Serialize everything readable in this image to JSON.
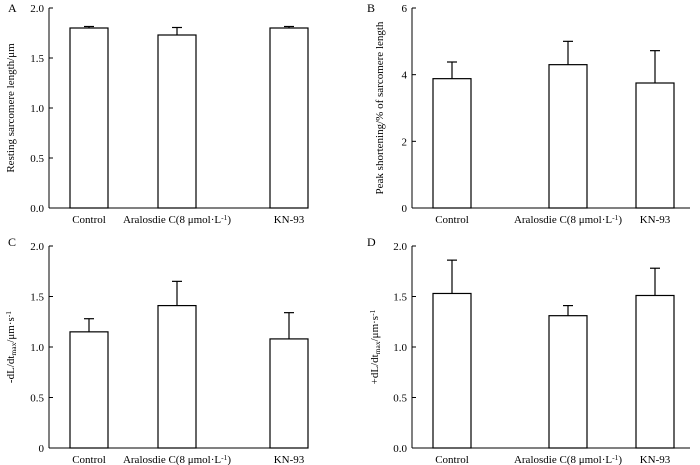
{
  "chart_data": [
    {
      "panel": "A",
      "type": "bar",
      "categories": [
        "Control",
        "Aralosdie C(8 μmol·L",
        "KN-93"
      ],
      "category_superscripts": [
        "",
        "-1",
        ""
      ],
      "category_suffix": [
        "",
        ")",
        ""
      ],
      "values": [
        1.8,
        1.73,
        1.8
      ],
      "errors": [
        0.015,
        0.075,
        0.015
      ],
      "ylim": [
        0,
        2.0
      ],
      "yticks": [
        0,
        0.5,
        1.0,
        1.5,
        2.0
      ],
      "ytick_labels": [
        "0.0",
        "0.5",
        "1.0",
        "1.5",
        "2.0"
      ],
      "ylabel": "Resting sarcomere length/μm",
      "ylabel_parts": [
        {
          "text": "Resting sarcomere length/μm",
          "style": "normal"
        }
      ],
      "xlabel": ""
    },
    {
      "panel": "B",
      "type": "bar",
      "categories": [
        "Control",
        "Aralosdie C(8 μmol·L",
        "KN-93"
      ],
      "category_superscripts": [
        "",
        "-1",
        ""
      ],
      "category_suffix": [
        "",
        ")",
        ""
      ],
      "values": [
        3.88,
        4.3,
        3.75
      ],
      "errors": [
        0.5,
        0.7,
        0.97
      ],
      "ylim": [
        0,
        6
      ],
      "yticks": [
        0,
        2,
        4,
        6
      ],
      "ytick_labels": [
        "0",
        "2",
        "4",
        "6"
      ],
      "ylabel": "Peak shortening/% of sarcomere length",
      "ylabel_parts": [
        {
          "text": "Peak shortening/% of sarcomere length",
          "style": "normal"
        }
      ],
      "xlabel": ""
    },
    {
      "panel": "C",
      "type": "bar",
      "categories": [
        "Control",
        "Aralosdie C(8 μmol·L",
        "KN-93"
      ],
      "category_superscripts": [
        "",
        "-1",
        ""
      ],
      "category_suffix": [
        "",
        ")",
        ""
      ],
      "values": [
        1.15,
        1.41,
        1.08
      ],
      "errors": [
        0.13,
        0.24,
        0.26
      ],
      "ylim": [
        0,
        2.0
      ],
      "yticks": [
        0,
        0.5,
        1.0,
        1.5,
        2.0
      ],
      "ytick_labels": [
        "0",
        "0.5",
        "1.0",
        "1.5",
        "2.0"
      ],
      "ylabel": "-dL/dtmax/μm·s-1",
      "ylabel_parts": [
        {
          "text": "-dL/dt",
          "style": "normal"
        },
        {
          "text": "max",
          "style": "sub"
        },
        {
          "text": "/μm·s",
          "style": "normal"
        },
        {
          "text": "-1",
          "style": "sup"
        }
      ],
      "xlabel": ""
    },
    {
      "panel": "D",
      "type": "bar",
      "categories": [
        "Control",
        "Aralosdie C(8 μmol·L",
        "KN-93"
      ],
      "category_superscripts": [
        "",
        "-1",
        ""
      ],
      "category_suffix": [
        "",
        ")",
        ""
      ],
      "values": [
        1.53,
        1.31,
        1.51
      ],
      "errors": [
        0.33,
        0.1,
        0.27
      ],
      "ylim": [
        0,
        2.0
      ],
      "yticks": [
        0,
        0.5,
        1.0,
        1.5,
        2.0
      ],
      "ytick_labels": [
        "0.0",
        "0.5",
        "1.0",
        "1.5",
        "2.0"
      ],
      "ylabel": "+dL/dtmax/μm·s-1",
      "ylabel_parts": [
        {
          "text": "+dL/dt",
          "style": "normal"
        },
        {
          "text": "max",
          "style": "sub"
        },
        {
          "text": "/μm·s",
          "style": "normal"
        },
        {
          "text": "-1",
          "style": "sup"
        }
      ],
      "xlabel": ""
    }
  ],
  "colors": {
    "bar_fill": "#ffffff",
    "bar_stroke": "#000000",
    "axis": "#000000",
    "text": "#000000"
  }
}
